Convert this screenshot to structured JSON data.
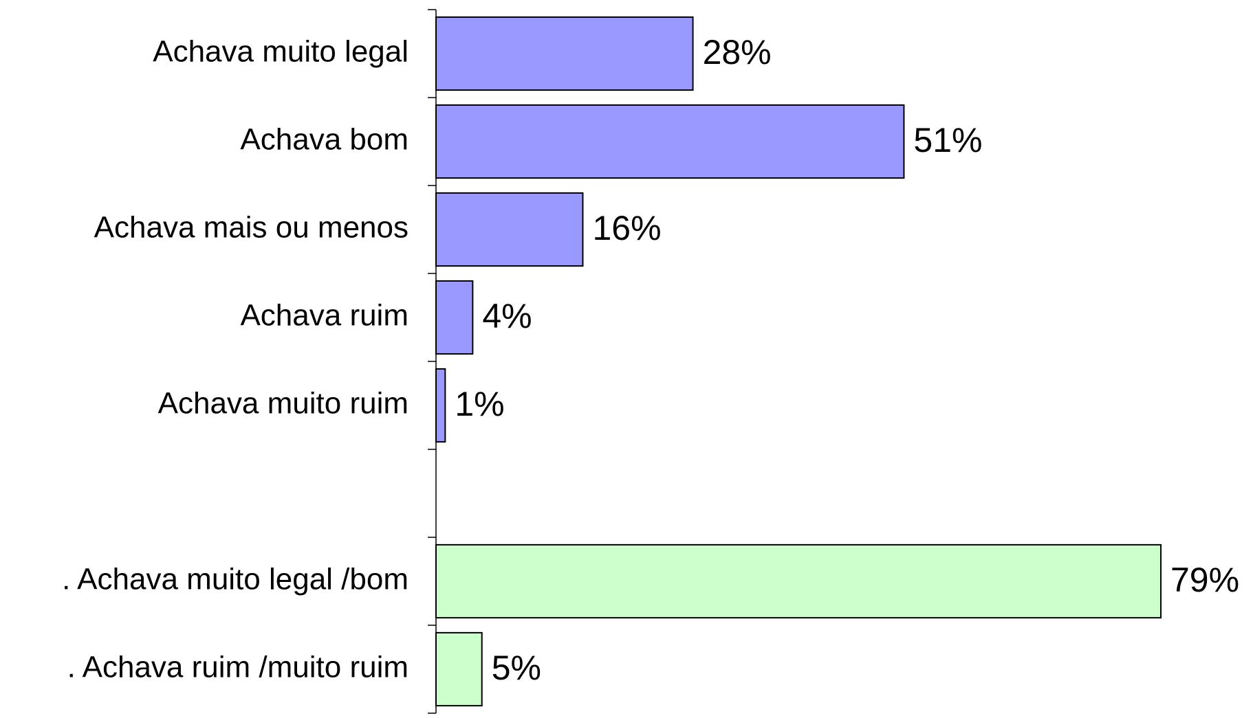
{
  "chart_data": {
    "type": "bar",
    "orientation": "horizontal",
    "categories": [
      "Achava muito legal",
      "Achava bom",
      "Achava mais ou menos",
      "Achava ruim",
      "Achava muito ruim",
      null,
      ". Achava muito legal /bom",
      ". Achava ruim /muito ruim"
    ],
    "values": [
      28,
      51,
      16,
      4,
      1,
      null,
      79,
      5
    ],
    "value_labels": [
      "28%",
      "51%",
      "16%",
      "4%",
      "1%",
      null,
      "79%",
      "5%"
    ],
    "colors": [
      "#9999ff",
      "#9999ff",
      "#9999ff",
      "#9999ff",
      "#9999ff",
      null,
      "#ccffcc",
      "#ccffcc"
    ],
    "grid": false
  }
}
